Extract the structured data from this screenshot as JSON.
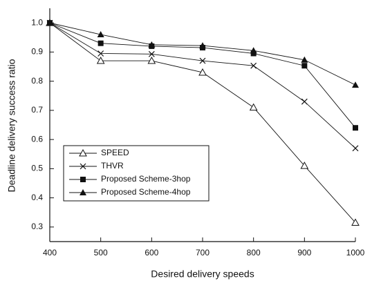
{
  "chart_data": {
    "type": "line",
    "x_label": "Desired delivery speeds",
    "y_label": "Deadline delivery success ratio",
    "x": [
      400,
      500,
      600,
      700,
      800,
      900,
      1000
    ],
    "xlim": [
      400,
      1000
    ],
    "xticks": [
      400,
      500,
      600,
      700,
      800,
      900,
      1000
    ],
    "ylim": [
      0.25,
      1.05
    ],
    "yticks": [
      0.3,
      0.4,
      0.5,
      0.6,
      0.7,
      0.8,
      0.9,
      {
        "value": 1,
        "label": "1.0"
      }
    ],
    "legend": "lower left",
    "series": [
      {
        "name": "SPEED",
        "color": "#111111",
        "marker": "triangle-open",
        "values": [
          1.0,
          0.87,
          0.87,
          0.83,
          0.71,
          0.51,
          0.315
        ]
      },
      {
        "name": "THVR",
        "color": "#111111",
        "marker": "x",
        "values": [
          1.0,
          0.895,
          0.893,
          0.87,
          0.853,
          0.73,
          0.57
        ]
      },
      {
        "name": "Proposed Scheme-3hop",
        "color": "#111111",
        "marker": "square",
        "values": [
          1.0,
          0.93,
          0.92,
          0.915,
          0.895,
          0.853,
          0.64
        ]
      },
      {
        "name": "Proposed Scheme-4hop",
        "color": "#111111",
        "marker": "triangle",
        "values": [
          1.0,
          0.96,
          0.925,
          0.922,
          0.905,
          0.873,
          0.787
        ]
      }
    ]
  }
}
